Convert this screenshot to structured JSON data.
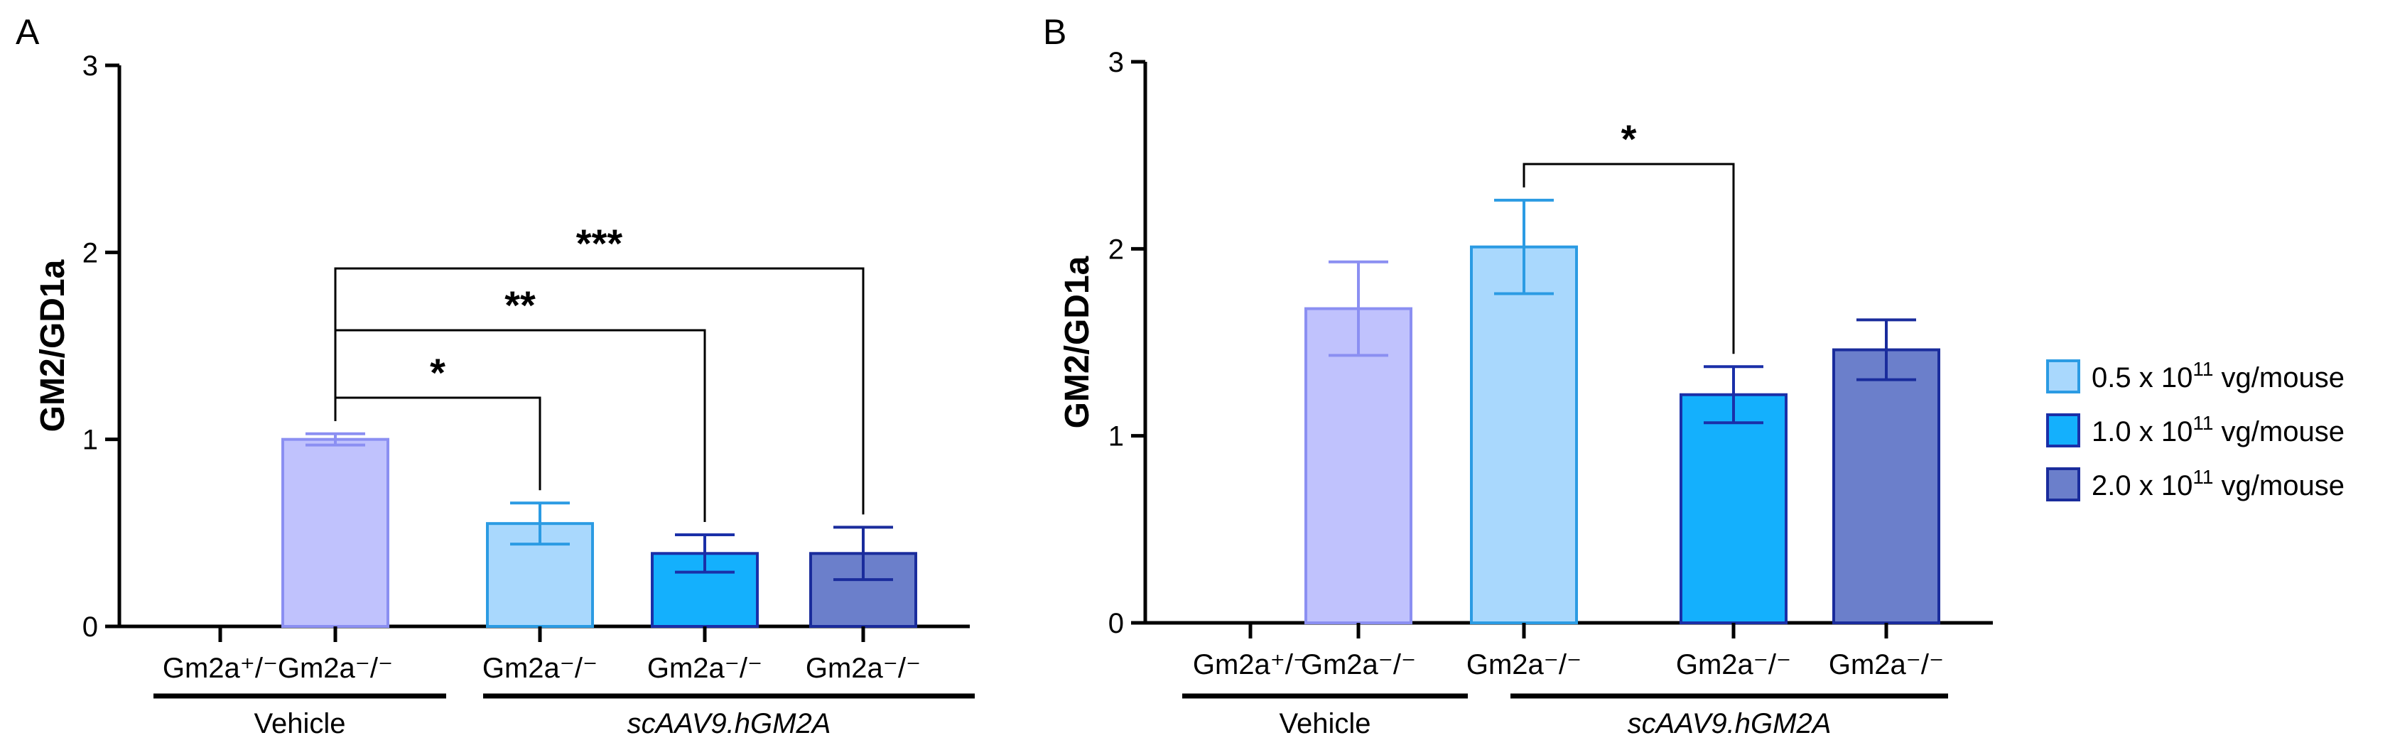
{
  "chart_data": [
    {
      "type": "bar",
      "panel": "A",
      "ylabel": "GM2/GD1a",
      "ylim": [
        0,
        3
      ],
      "yticks": [
        "0",
        "1",
        "2",
        "3"
      ],
      "categories": [
        "Gm2a⁺/⁻",
        "Gm2a⁻/⁻",
        "Gm2a⁻/⁻",
        "Gm2a⁻/⁻",
        "Gm2a⁻/⁻"
      ],
      "values": [
        0,
        1.0,
        0.55,
        0.39,
        0.39
      ],
      "errors": [
        0,
        0.03,
        0.11,
        0.1,
        0.14
      ],
      "fill_colors": [
        "#ffffff",
        "#c0c2fd",
        "#a9d8fd",
        "#14b0fd",
        "#6b7fcb"
      ],
      "edge_colors": [
        "#000000",
        "#8b8ff2",
        "#2b9be3",
        "#1a2fa8",
        "#1a2c9c"
      ],
      "groups": [
        {
          "label": "Vehicle",
          "italic": false
        },
        {
          "label": "scAAV9.hGM2A",
          "italic": true
        }
      ],
      "significance": [
        {
          "from": 1,
          "to": 2,
          "label": "*"
        },
        {
          "from": 1,
          "to": 3,
          "label": "**"
        },
        {
          "from": 1,
          "to": 4,
          "label": "***"
        }
      ]
    },
    {
      "type": "bar",
      "panel": "B",
      "ylabel": "GM2/GD1a",
      "ylim": [
        0,
        3
      ],
      "yticks": [
        "0",
        "1",
        "2",
        "3"
      ],
      "categories": [
        "Gm2a⁺/⁻",
        "Gm2a⁻/⁻",
        "Gm2a⁻/⁻",
        "Gm2a⁻/⁻",
        "Gm2a⁻/⁻"
      ],
      "values": [
        0,
        1.68,
        2.01,
        1.22,
        1.46
      ],
      "errors": [
        0,
        0.25,
        0.25,
        0.15,
        0.16
      ],
      "fill_colors": [
        "#ffffff",
        "#c0c2fd",
        "#a9d8fd",
        "#14b0fd",
        "#6b7fcb"
      ],
      "edge_colors": [
        "#000000",
        "#8b8ff2",
        "#2b9be3",
        "#1a2fa8",
        "#1a2c9c"
      ],
      "groups": [
        {
          "label": "Vehicle",
          "italic": false
        },
        {
          "label": "scAAV9.hGM2A",
          "italic": true
        }
      ],
      "significance": [
        {
          "from": 2,
          "to": 3,
          "label": "*"
        }
      ]
    }
  ],
  "legend": {
    "position": "right",
    "entries": [
      {
        "base": "0.5 x 10",
        "exp": "11",
        "suffix": " vg/mouse",
        "fill": "#a9d8fd",
        "edge": "#2b9be3"
      },
      {
        "base": "1.0 x 10",
        "exp": "11",
        "suffix": " vg/mouse",
        "fill": "#14b0fd",
        "edge": "#1a2fa8"
      },
      {
        "base": "2.0 x 10",
        "exp": "11",
        "suffix": " vg/mouse",
        "fill": "#6b7fcb",
        "edge": "#1a2c9c"
      }
    ]
  }
}
